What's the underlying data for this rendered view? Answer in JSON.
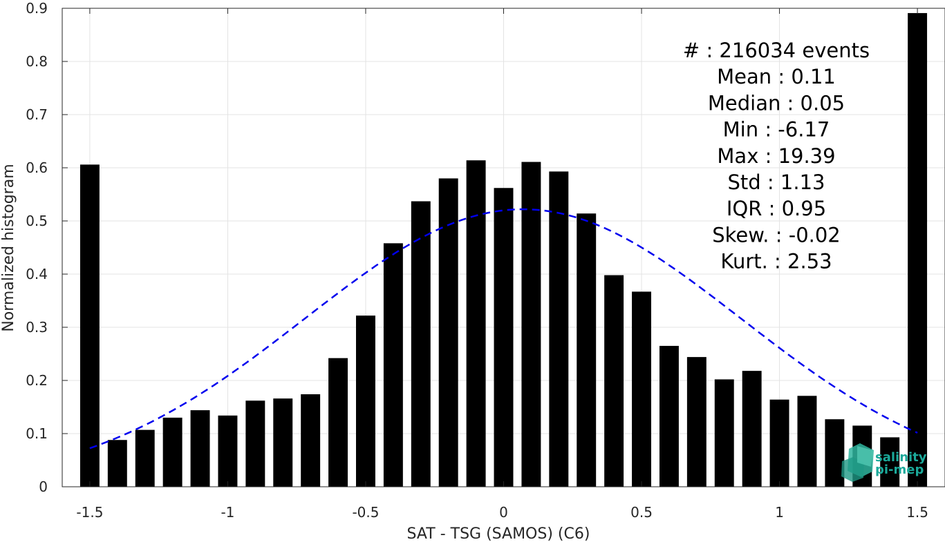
{
  "chart_data": {
    "type": "bar",
    "xlabel": "SAT - TSG (SAMOS) (C6)",
    "ylabel": "Normalized histogram",
    "xlim": [
      -1.6,
      1.6
    ],
    "ylim": [
      0,
      0.9
    ],
    "x_ticks": [
      -1.5,
      -1,
      -0.5,
      0,
      0.5,
      1,
      1.5
    ],
    "x_tick_labels": [
      "-1.5",
      "-1",
      "-0.5",
      "0",
      "0.5",
      "1",
      "1.5"
    ],
    "y_ticks": [
      0,
      0.1,
      0.2,
      0.3,
      0.4,
      0.5,
      0.6,
      0.7,
      0.8,
      0.9
    ],
    "y_tick_labels": [
      "0",
      "0.1",
      "0.2",
      "0.3",
      "0.4",
      "0.5",
      "0.6",
      "0.7",
      "0.8",
      "0.9"
    ],
    "grid": true,
    "bar_color": "#000000",
    "bar_width": 0.07,
    "x": [
      -1.5,
      -1.4,
      -1.3,
      -1.2,
      -1.1,
      -1.0,
      -0.9,
      -0.8,
      -0.7,
      -0.6,
      -0.5,
      -0.4,
      -0.3,
      -0.2,
      -0.1,
      0.0,
      0.1,
      0.2,
      0.3,
      0.4,
      0.5,
      0.6,
      0.7,
      0.8,
      0.9,
      1.0,
      1.1,
      1.2,
      1.3,
      1.4,
      1.5
    ],
    "values": [
      0.606,
      0.088,
      0.107,
      0.13,
      0.144,
      0.134,
      0.162,
      0.166,
      0.174,
      0.242,
      0.322,
      0.458,
      0.537,
      0.58,
      0.614,
      0.562,
      0.611,
      0.593,
      0.514,
      0.398,
      0.367,
      0.265,
      0.244,
      0.202,
      0.218,
      0.164,
      0.171,
      0.127,
      0.115,
      0.093,
      0.891
    ],
    "fit_curve": {
      "type": "gaussian",
      "style": "dashed",
      "color": "#0000ee",
      "mean": 0.07,
      "std": 0.79,
      "peak": 0.522,
      "x_range": [
        -1.5,
        1.5
      ]
    },
    "stats": [
      "#  : 216034 events",
      "Mean : 0.11",
      "Median : 0.05",
      "Min : -6.17",
      "Max : 19.39",
      "Std : 1.13",
      "IQR : 0.95",
      "Skew. : -0.02",
      "Kurt. : 2.53"
    ]
  },
  "logo": {
    "line1": "salinity",
    "line2": "pi-mep"
  }
}
